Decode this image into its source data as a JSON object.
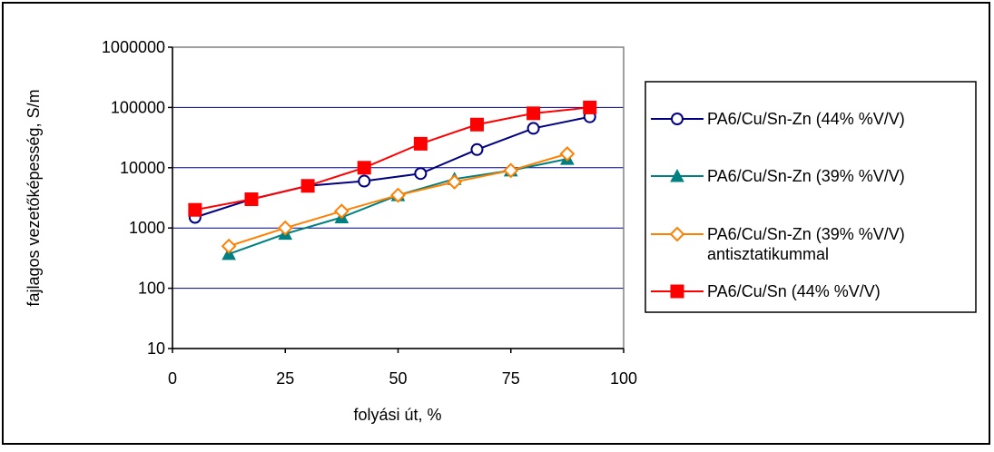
{
  "chart_data": {
    "type": "line",
    "xlabel": "folyási út, %",
    "ylabel": "fajlagos vezetőképesség, S/m",
    "xlim": [
      0,
      100
    ],
    "ylim": [
      10,
      1000000
    ],
    "yscale": "log",
    "x_ticks": [
      "0",
      "25",
      "50",
      "75",
      "100"
    ],
    "y_ticks": [
      "10",
      "100",
      "1000",
      "10000",
      "100000",
      "1000000"
    ],
    "grid": "horizontal",
    "legend_position": "right",
    "series": [
      {
        "name": "PA6/Cu/Sn-Zn (44% %V/V)",
        "color": "#000080",
        "marker": "circle-open",
        "x": [
          5,
          17.5,
          30,
          42.5,
          55,
          67.5,
          80,
          92.5
        ],
        "y": [
          1500,
          3000,
          5000,
          6000,
          8000,
          20000,
          45000,
          70000
        ]
      },
      {
        "name": "PA6/Cu/Sn-Zn (39% %V/V)",
        "color": "#008080",
        "marker": "triangle-filled",
        "x": [
          12.5,
          25,
          37.5,
          50,
          62.5,
          75,
          87.5
        ],
        "y": [
          370,
          800,
          1500,
          3500,
          6500,
          9000,
          14000
        ]
      },
      {
        "name": "PA6/Cu/Sn-Zn (39% %V/V)",
        "name_line2": "antisztatikummal",
        "color": "#FF8000",
        "marker": "diamond-open",
        "x": [
          12.5,
          25,
          37.5,
          50,
          62.5,
          75,
          87.5
        ],
        "y": [
          500,
          1000,
          1900,
          3500,
          5800,
          9000,
          17000
        ]
      },
      {
        "name": "PA6/Cu/Sn (44% %V/V)",
        "color": "#FF0000",
        "marker": "square-filled",
        "x": [
          5,
          17.5,
          30,
          42.5,
          55,
          67.5,
          80,
          92.5
        ],
        "y": [
          2000,
          3000,
          5000,
          10000,
          25000,
          52000,
          80000,
          100000
        ]
      }
    ]
  }
}
